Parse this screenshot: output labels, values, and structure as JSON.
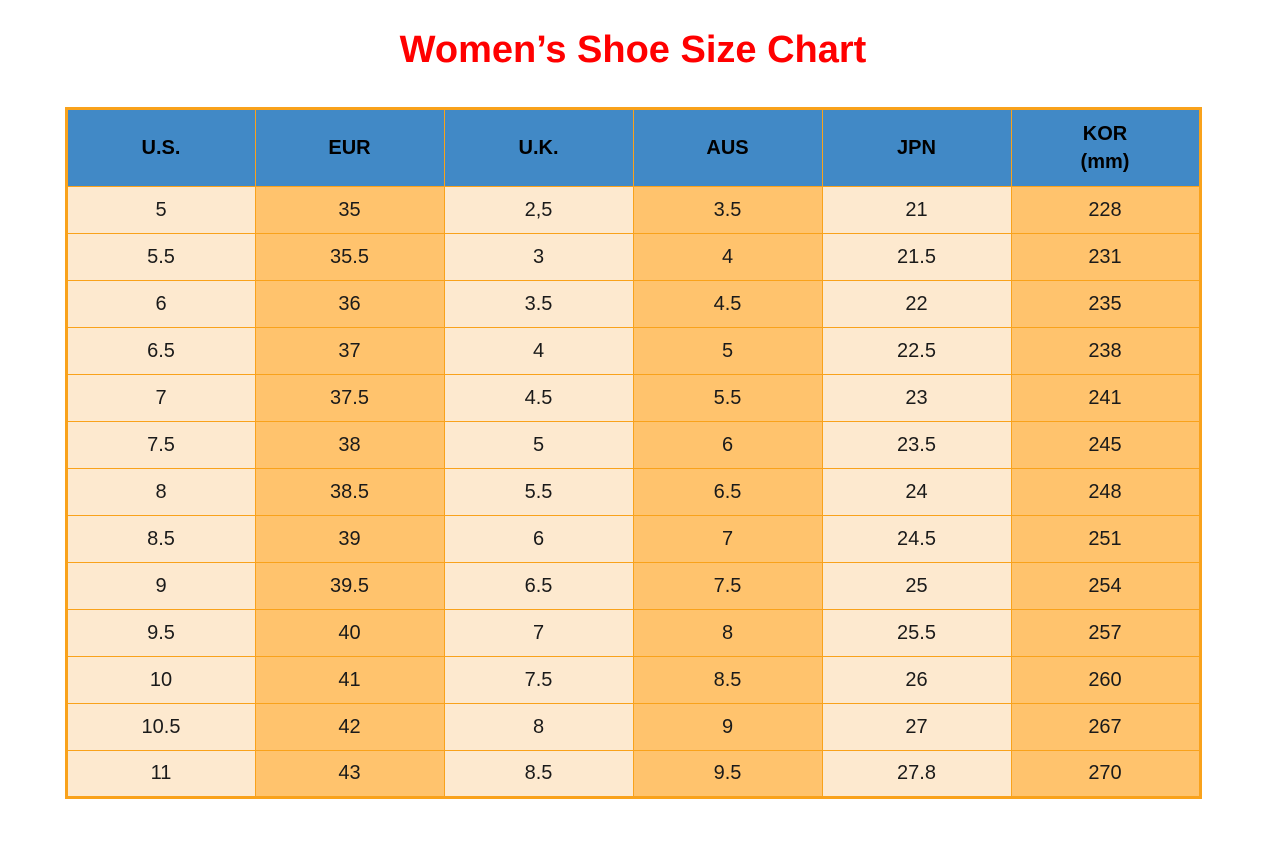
{
  "title": "Women’s Shoe Size Chart",
  "colors": {
    "title_red": "#ff0000",
    "header_blue": "#4189c6",
    "cell_orange": "#ffc36d",
    "cell_cream": "#fde9cf",
    "border_orange": "#f9a21b",
    "text_dark": "#1a1a1a"
  },
  "chart_data": {
    "type": "table",
    "title": "Women’s Shoe Size Chart",
    "columns": [
      "U.S.",
      "EUR",
      "U.K.",
      "AUS",
      "JPN",
      "KOR\n(mm)"
    ],
    "rows": [
      [
        "5",
        "35",
        "2,5",
        "3.5",
        "21",
        "228"
      ],
      [
        "5.5",
        "35.5",
        "3",
        "4",
        "21.5",
        "231"
      ],
      [
        "6",
        "36",
        "3.5",
        "4.5",
        "22",
        "235"
      ],
      [
        "6.5",
        "37",
        "4",
        "5",
        "22.5",
        "238"
      ],
      [
        "7",
        "37.5",
        "4.5",
        "5.5",
        "23",
        "241"
      ],
      [
        "7.5",
        "38",
        "5",
        "6",
        "23.5",
        "245"
      ],
      [
        "8",
        "38.5",
        "5.5",
        "6.5",
        "24",
        "248"
      ],
      [
        "8.5",
        "39",
        "6",
        "7",
        "24.5",
        "251"
      ],
      [
        "9",
        "39.5",
        "6.5",
        "7.5",
        "25",
        "254"
      ],
      [
        "9.5",
        "40",
        "7",
        "8",
        "25.5",
        "257"
      ],
      [
        "10",
        "41",
        "7.5",
        "8.5",
        "26",
        "260"
      ],
      [
        "10.5",
        "42",
        "8",
        "9",
        "27",
        "267"
      ],
      [
        "11",
        "43",
        "8.5",
        "9.5",
        "27.8",
        "270"
      ]
    ]
  }
}
